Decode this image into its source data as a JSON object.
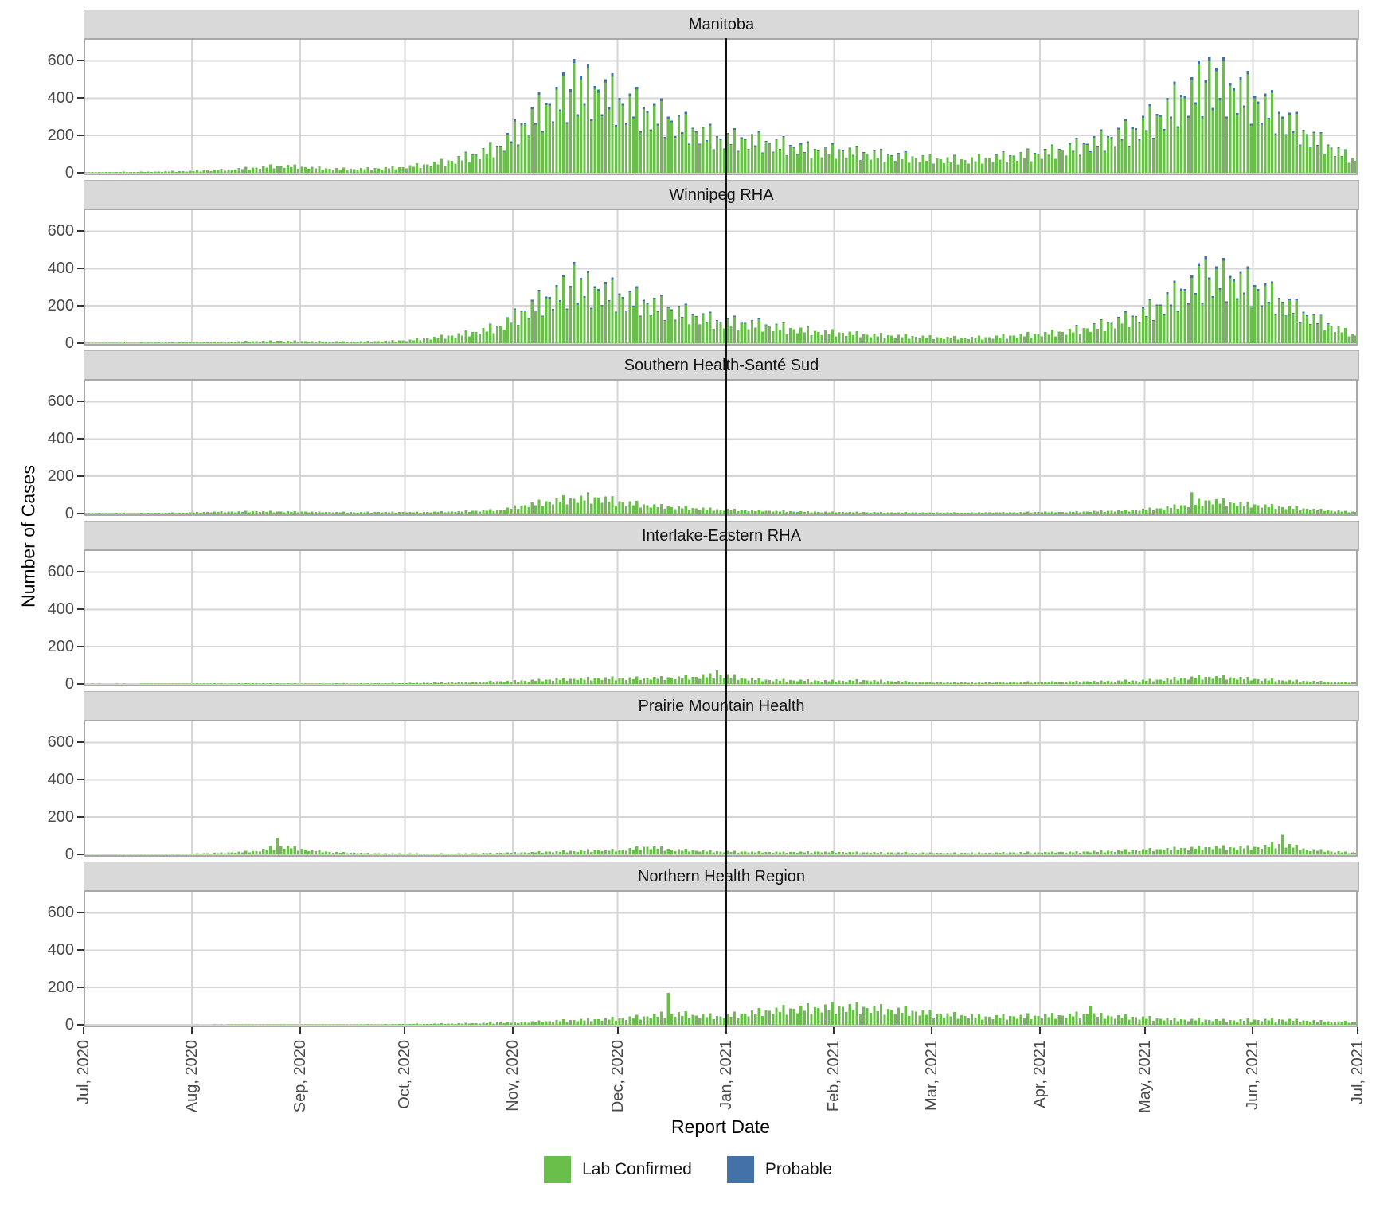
{
  "axes": {
    "y_title": "Number of Cases",
    "x_title": "Report Date",
    "y_tick_values": [
      0,
      200,
      400,
      600
    ],
    "x_ticks": [
      "Jul, 2020",
      "Aug, 2020",
      "Sep, 2020",
      "Oct, 2020",
      "Nov, 2020",
      "Dec, 2020",
      "Jan, 2021",
      "Feb, 2021",
      "Mar, 2021",
      "Apr, 2021",
      "May, 2021",
      "Jun, 2021",
      "Jul, 2021"
    ]
  },
  "legend": {
    "items": [
      {
        "label": "Lab Confirmed",
        "color": "#6abf4a"
      },
      {
        "label": "Probable",
        "color": "#4472a8"
      }
    ]
  },
  "style": {
    "strip_fill": "#d9d9d9",
    "grid_color": "#d6d6d6",
    "panel_border": "#a9a9a9",
    "reference_line_color": "#111111"
  },
  "chart_data": {
    "type": "bar",
    "stacked": true,
    "facet_field": "region",
    "x_unit": "day",
    "x_range": [
      "2020-07-01",
      "2021-07-01"
    ],
    "ylim": [
      0,
      700
    ],
    "y_gridlines": [
      0,
      200,
      400,
      600
    ],
    "grid": true,
    "legend_position": "bottom",
    "reference_line_x": "2021-01-01",
    "reference_line_day": 184,
    "month_day_offsets": [
      0,
      31,
      62,
      92,
      123,
      153,
      184,
      215,
      243,
      274,
      304,
      335,
      365
    ],
    "days_total": 365,
    "series": [
      {
        "name": "Lab Confirmed",
        "color": "#6abf4a"
      },
      {
        "name": "Probable",
        "color": "#4472a8"
      }
    ],
    "weekly_anchor_note": "weekly typical daily case counts (lab confirmed), Jul 1 2020 - Jun 30 2021, estimated from pixels",
    "day_pattern": [
      1.0,
      0.72,
      1.18,
      0.85,
      1.32,
      0.65,
      1.05
    ],
    "regions": [
      {
        "name": "Manitoba",
        "weekly_lab_confirmed": [
          3,
          4,
          5,
          6,
          9,
          12,
          18,
          28,
          38,
          30,
          22,
          20,
          24,
          30,
          45,
          65,
          95,
          140,
          260,
          360,
          420,
          430,
          360,
          320,
          270,
          215,
          175,
          175,
          155,
          135,
          115,
          115,
          100,
          90,
          80,
          72,
          68,
          78,
          88,
          100,
          120,
          150,
          185,
          230,
          300,
          400,
          470,
          440,
          370,
          290,
          200,
          130,
          65
        ],
        "probable_ratio": 0.035,
        "spikes": [
          {
            "day": 140,
            "value": 590
          },
          {
            "day": 322,
            "value": 600
          }
        ]
      },
      {
        "name": "Winnipeg RHA",
        "weekly_lab_confirmed": [
          2,
          2,
          3,
          4,
          5,
          6,
          8,
          10,
          12,
          10,
          9,
          8,
          10,
          14,
          25,
          40,
          60,
          90,
          170,
          240,
          290,
          280,
          240,
          210,
          175,
          140,
          110,
          105,
          90,
          75,
          60,
          55,
          45,
          40,
          35,
          30,
          28,
          32,
          40,
          48,
          60,
          80,
          105,
          140,
          200,
          280,
          340,
          330,
          280,
          215,
          145,
          90,
          40
        ],
        "probable_ratio": 0.035,
        "spikes": [
          {
            "day": 140,
            "value": 420
          },
          {
            "day": 321,
            "value": 450
          }
        ]
      },
      {
        "name": "Southern Health-Santé Sud",
        "weekly_lab_confirmed": [
          2,
          3,
          3,
          4,
          5,
          8,
          10,
          12,
          10,
          10,
          8,
          7,
          8,
          8,
          8,
          10,
          14,
          20,
          45,
          65,
          80,
          85,
          60,
          45,
          35,
          28,
          22,
          18,
          14,
          11,
          9,
          8,
          7,
          6,
          6,
          5,
          5,
          6,
          7,
          8,
          9,
          11,
          14,
          18,
          28,
          45,
          70,
          55,
          45,
          35,
          25,
          16,
          9
        ],
        "probable_ratio": 0.03,
        "spikes": [
          {
            "day": 317,
            "value": 110
          }
        ]
      },
      {
        "name": "Interlake-Eastern RHA",
        "weekly_lab_confirmed": [
          1,
          1,
          1,
          2,
          2,
          3,
          3,
          4,
          3,
          2,
          3,
          3,
          4,
          5,
          6,
          8,
          10,
          14,
          18,
          24,
          28,
          30,
          30,
          32,
          34,
          38,
          48,
          28,
          22,
          20,
          18,
          18,
          20,
          16,
          12,
          9,
          8,
          9,
          10,
          11,
          12,
          14,
          16,
          18,
          24,
          32,
          38,
          34,
          26,
          20,
          15,
          12,
          8
        ],
        "probable_ratio": 0.03,
        "spikes": [
          {
            "day": 181,
            "value": 72
          }
        ]
      },
      {
        "name": "Prairie Mountain Health",
        "weekly_lab_confirmed": [
          1,
          1,
          2,
          2,
          3,
          6,
          10,
          18,
          45,
          25,
          12,
          8,
          6,
          5,
          4,
          5,
          6,
          8,
          10,
          14,
          18,
          22,
          24,
          40,
          26,
          20,
          16,
          14,
          12,
          12,
          14,
          12,
          11,
          10,
          9,
          8,
          8,
          9,
          10,
          11,
          12,
          15,
          18,
          22,
          28,
          34,
          38,
          36,
          38,
          55,
          26,
          16,
          9
        ],
        "probable_ratio": 0.02,
        "spikes": [
          {
            "day": 55,
            "value": 90
          },
          {
            "day": 343,
            "value": 105
          }
        ]
      },
      {
        "name": "Northern Health Region",
        "weekly_lab_confirmed": [
          0.3,
          0.4,
          0.5,
          0.6,
          0.8,
          1,
          1.5,
          2,
          2,
          1.5,
          2,
          2,
          3,
          4,
          5,
          7,
          9,
          12,
          15,
          20,
          26,
          30,
          35,
          45,
          60,
          50,
          45,
          60,
          75,
          85,
          90,
          95,
          90,
          80,
          70,
          55,
          48,
          42,
          44,
          48,
          50,
          55,
          45,
          40,
          32,
          28,
          26,
          24,
          26,
          28,
          22,
          18,
          14
        ],
        "probable_ratio": 0.015,
        "spikes": [
          {
            "day": 167,
            "value": 170
          },
          {
            "day": 288,
            "value": 100
          }
        ]
      }
    ]
  }
}
